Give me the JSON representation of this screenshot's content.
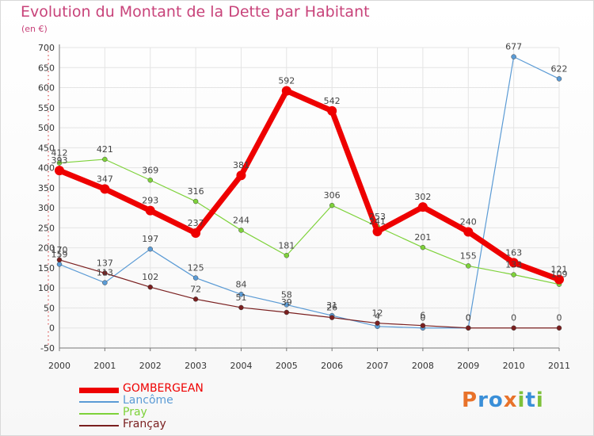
{
  "header": {
    "title": "Evolution du Montant de la Dette par Habitant",
    "subtitle": "(en €)"
  },
  "colors": {
    "title": "#c8437a",
    "axis_text": "#333333",
    "grid": "#e4e4e4",
    "axis": "#777777"
  },
  "chart_data": {
    "type": "line",
    "title": "Evolution du Montant de la Dette par Habitant",
    "subtitle": "(en €)",
    "x": [
      "2000",
      "2001",
      "2002",
      "2003",
      "2004",
      "2005",
      "2006",
      "2007",
      "2008",
      "2009",
      "2010",
      "2011"
    ],
    "ylim": [
      -50,
      700
    ],
    "yticks": [
      -50,
      0,
      50,
      100,
      150,
      200,
      250,
      300,
      350,
      400,
      450,
      500,
      550,
      600,
      650,
      700
    ],
    "grid": true,
    "legend_position": "bottom-left",
    "series": [
      {
        "name": "GOMBERGEAN",
        "color": "#ee0000",
        "width": 7,
        "marker": 6,
        "values": [
          393,
          347,
          293,
          237,
          381,
          592,
          542,
          241,
          302,
          240,
          163,
          121
        ],
        "labels": [
          "393",
          "347",
          "293",
          "237",
          "381",
          "592",
          "542",
          "241",
          "302",
          "240",
          "163",
          "121"
        ]
      },
      {
        "name": "Lancôme",
        "color": "#5b9bd5",
        "width": 1.2,
        "marker": 3,
        "values": [
          159,
          113,
          197,
          125,
          84,
          58,
          31,
          4,
          0,
          0,
          677,
          622
        ],
        "labels": [
          "159",
          "113",
          "197",
          "125",
          "84",
          "58",
          "31",
          "4",
          "0",
          "0",
          "677",
          "622"
        ]
      },
      {
        "name": "Pray",
        "color": "#7ed23a",
        "width": 1.2,
        "marker": 3,
        "values": [
          412,
          421,
          369,
          316,
          244,
          181,
          306,
          253,
          201,
          155,
          133,
          109
        ],
        "labels": [
          "412",
          "421",
          "369",
          "316",
          "244",
          "181",
          "306",
          "253",
          "201",
          "155",
          "133",
          "109"
        ]
      },
      {
        "name": "Françay",
        "color": "#7a1f1f",
        "width": 1.2,
        "marker": 3,
        "values": [
          170,
          137,
          102,
          72,
          51,
          39,
          26,
          12,
          6,
          0,
          0,
          0
        ],
        "labels": [
          "170",
          "137",
          "102",
          "72",
          "51",
          "39",
          "26",
          "12",
          "6",
          "0",
          "0",
          "0"
        ]
      }
    ]
  },
  "legend": {
    "items": [
      {
        "label": "GOMBERGEAN",
        "color": "#ee0000"
      },
      {
        "label": "Lancôme",
        "color": "#5b9bd5"
      },
      {
        "label": "Pray",
        "color": "#7ed23a"
      },
      {
        "label": "Françay",
        "color": "#7a1f1f"
      }
    ]
  },
  "logo": {
    "text": "Proxiti",
    "letters": [
      {
        "ch": "P",
        "color": "#e8722a"
      },
      {
        "ch": "r",
        "color": "#3a8fd8"
      },
      {
        "ch": "o",
        "color": "#3a8fd8"
      },
      {
        "ch": "x",
        "color": "#e8722a"
      },
      {
        "ch": "i",
        "color": "#7ec13a"
      },
      {
        "ch": "t",
        "color": "#3a8fd8"
      },
      {
        "ch": "i",
        "color": "#7ec13a"
      }
    ]
  }
}
